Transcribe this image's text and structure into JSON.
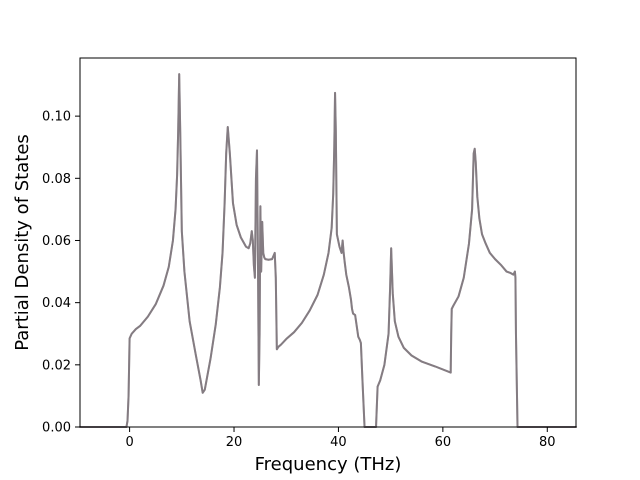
{
  "chart_data": {
    "type": "line",
    "title": "",
    "xlabel": "Frequency (THz)",
    "ylabel": "Partial Density of States",
    "xlim": [
      -9.5,
      85.5
    ],
    "ylim": [
      0.0,
      0.1187
    ],
    "xticks": [
      0,
      20,
      40,
      60,
      80
    ],
    "xtick_labels": [
      "0",
      "20",
      "40",
      "60",
      "80"
    ],
    "yticks": [
      0.0,
      0.02,
      0.04,
      0.06,
      0.08,
      0.1
    ],
    "ytick_labels": [
      "0.00",
      "0.02",
      "0.04",
      "0.06",
      "0.08",
      "0.10"
    ],
    "grid": false,
    "legend": "none",
    "series": [
      {
        "color": "#8a797e",
        "x": [
          -9.5,
          -0.6,
          -0.4,
          -0.2,
          0.0,
          0.4,
          1.2,
          2.0,
          3.5,
          5.0,
          6.5,
          7.5,
          8.3,
          8.8,
          9.1,
          9.3,
          9.5,
          9.7,
          10.0,
          10.5,
          11.5,
          12.7,
          13.6,
          14.0,
          14.4,
          15.5,
          16.5,
          17.3,
          17.8,
          18.2,
          18.5,
          18.8,
          19.2,
          19.8,
          20.5,
          21.3,
          22.3,
          22.8,
          23.1,
          23.4,
          23.6,
          23.8,
          24.0,
          24.2,
          24.4,
          24.6,
          24.75,
          24.9,
          25.05,
          25.2,
          25.4,
          25.6,
          25.8,
          26.0,
          26.6,
          27.3,
          27.8,
          28.0,
          28.2,
          28.5,
          29.0,
          30.0,
          31.5,
          33.0,
          34.5,
          36.0,
          37.2,
          38.1,
          38.7,
          39.0,
          39.2,
          39.35,
          39.5,
          39.7,
          40.2,
          40.6,
          40.8,
          41.0,
          41.2,
          41.5,
          42.0,
          42.4,
          42.6,
          42.8,
          43.2,
          43.8,
          44.1,
          44.3,
          44.6,
          45.0,
          47.2,
          47.5,
          48.0,
          48.8,
          49.6,
          49.9,
          50.1,
          50.4,
          50.8,
          51.5,
          52.5,
          54.0,
          56.0,
          58.5,
          61.5,
          61.6,
          61.7,
          62.0,
          63.0,
          64.0,
          65.0,
          65.6,
          65.9,
          66.1,
          66.3,
          66.6,
          67.0,
          67.5,
          68.2,
          69.0,
          70.0,
          71.2,
          72.2,
          73.0,
          73.5,
          73.8,
          73.9,
          74.0,
          74.15,
          74.3,
          85.5
        ],
        "y": [
          0.0,
          0.0,
          0.002,
          0.01,
          0.0285,
          0.03,
          0.0315,
          0.0325,
          0.0355,
          0.0395,
          0.0455,
          0.0515,
          0.06,
          0.07,
          0.081,
          0.095,
          0.1135,
          0.095,
          0.063,
          0.05,
          0.034,
          0.023,
          0.015,
          0.011,
          0.012,
          0.022,
          0.033,
          0.045,
          0.056,
          0.072,
          0.088,
          0.0965,
          0.088,
          0.072,
          0.065,
          0.061,
          0.058,
          0.0575,
          0.059,
          0.063,
          0.06,
          0.052,
          0.048,
          0.08,
          0.089,
          0.05,
          0.0135,
          0.03,
          0.071,
          0.05,
          0.066,
          0.056,
          0.0545,
          0.054,
          0.0538,
          0.054,
          0.056,
          0.048,
          0.025,
          0.0258,
          0.0265,
          0.0283,
          0.0305,
          0.0335,
          0.0375,
          0.0425,
          0.049,
          0.056,
          0.064,
          0.075,
          0.09,
          0.1075,
          0.095,
          0.062,
          0.058,
          0.056,
          0.06,
          0.056,
          0.053,
          0.049,
          0.045,
          0.041,
          0.038,
          0.0365,
          0.036,
          0.029,
          0.028,
          0.027,
          0.015,
          0.0,
          0.0,
          0.013,
          0.015,
          0.02,
          0.03,
          0.045,
          0.0575,
          0.043,
          0.034,
          0.029,
          0.0255,
          0.023,
          0.021,
          0.0195,
          0.0175,
          0.03,
          0.038,
          0.039,
          0.042,
          0.048,
          0.059,
          0.07,
          0.088,
          0.0895,
          0.085,
          0.074,
          0.067,
          0.062,
          0.059,
          0.056,
          0.054,
          0.052,
          0.05,
          0.0495,
          0.049,
          0.05,
          0.048,
          0.03,
          0.015,
          0.0,
          0.0
        ]
      },
      {
        "color": "#7d8088",
        "x": [
          -9.5,
          -0.6,
          -0.4,
          -0.2,
          0.0,
          0.4,
          1.2,
          2.0,
          3.5,
          5.0,
          6.5,
          7.5,
          8.3,
          8.8,
          9.1,
          9.3,
          9.5,
          9.7,
          10.0,
          10.5,
          11.5,
          12.7,
          13.6,
          14.0,
          14.4,
          15.5,
          16.5,
          17.3,
          17.8,
          18.2,
          18.5,
          18.8,
          19.2,
          19.8,
          20.5,
          21.3,
          22.3,
          22.8,
          23.1,
          23.4,
          23.6,
          23.8,
          24.0,
          24.2,
          24.4,
          24.6,
          24.75,
          24.9,
          25.05,
          25.2,
          25.4,
          25.6,
          25.8,
          26.0,
          26.6,
          27.3,
          27.8,
          28.0,
          28.2,
          28.5,
          29.0,
          30.0,
          31.5,
          33.0,
          34.5,
          36.0,
          37.2,
          38.1,
          38.7,
          39.0,
          39.2,
          39.35,
          39.5,
          39.7,
          40.2,
          40.6,
          40.8,
          41.0,
          41.2,
          41.5,
          42.0,
          42.4,
          42.6,
          42.8,
          43.2,
          43.8,
          44.1,
          44.3,
          44.6,
          45.0,
          47.2,
          47.5,
          48.0,
          48.8,
          49.6,
          49.9,
          50.1,
          50.4,
          50.8,
          51.5,
          52.5,
          54.0,
          56.0,
          58.5,
          61.5,
          61.6,
          61.7,
          62.0,
          63.0,
          64.0,
          65.0,
          65.6,
          65.9,
          66.1,
          66.3,
          66.6,
          67.0,
          67.5,
          68.2,
          69.0,
          70.0,
          71.2,
          72.2,
          73.0,
          73.5,
          73.8,
          73.9,
          74.0,
          74.15,
          74.3,
          85.5
        ],
        "y": [
          0.0,
          0.0,
          0.002,
          0.01,
          0.0285,
          0.03,
          0.0315,
          0.0325,
          0.0355,
          0.0395,
          0.0455,
          0.0515,
          0.06,
          0.07,
          0.081,
          0.095,
          0.1135,
          0.095,
          0.063,
          0.05,
          0.034,
          0.023,
          0.015,
          0.011,
          0.012,
          0.022,
          0.033,
          0.045,
          0.056,
          0.072,
          0.088,
          0.0965,
          0.088,
          0.072,
          0.065,
          0.061,
          0.058,
          0.0575,
          0.059,
          0.063,
          0.06,
          0.052,
          0.048,
          0.08,
          0.089,
          0.05,
          0.0135,
          0.03,
          0.071,
          0.05,
          0.066,
          0.056,
          0.0545,
          0.054,
          0.0538,
          0.054,
          0.056,
          0.048,
          0.025,
          0.0258,
          0.0265,
          0.0283,
          0.0305,
          0.0335,
          0.0375,
          0.0425,
          0.049,
          0.056,
          0.064,
          0.075,
          0.09,
          0.1075,
          0.095,
          0.062,
          0.058,
          0.056,
          0.06,
          0.056,
          0.053,
          0.049,
          0.045,
          0.041,
          0.038,
          0.0365,
          0.036,
          0.029,
          0.028,
          0.027,
          0.015,
          0.0,
          0.0,
          0.013,
          0.015,
          0.02,
          0.03,
          0.045,
          0.0575,
          0.043,
          0.034,
          0.029,
          0.0255,
          0.023,
          0.021,
          0.0195,
          0.0175,
          0.03,
          0.038,
          0.039,
          0.042,
          0.048,
          0.059,
          0.07,
          0.088,
          0.0895,
          0.085,
          0.074,
          0.067,
          0.062,
          0.059,
          0.056,
          0.054,
          0.052,
          0.05,
          0.0495,
          0.049,
          0.05,
          0.048,
          0.03,
          0.015,
          0.0,
          0.0
        ]
      }
    ]
  }
}
